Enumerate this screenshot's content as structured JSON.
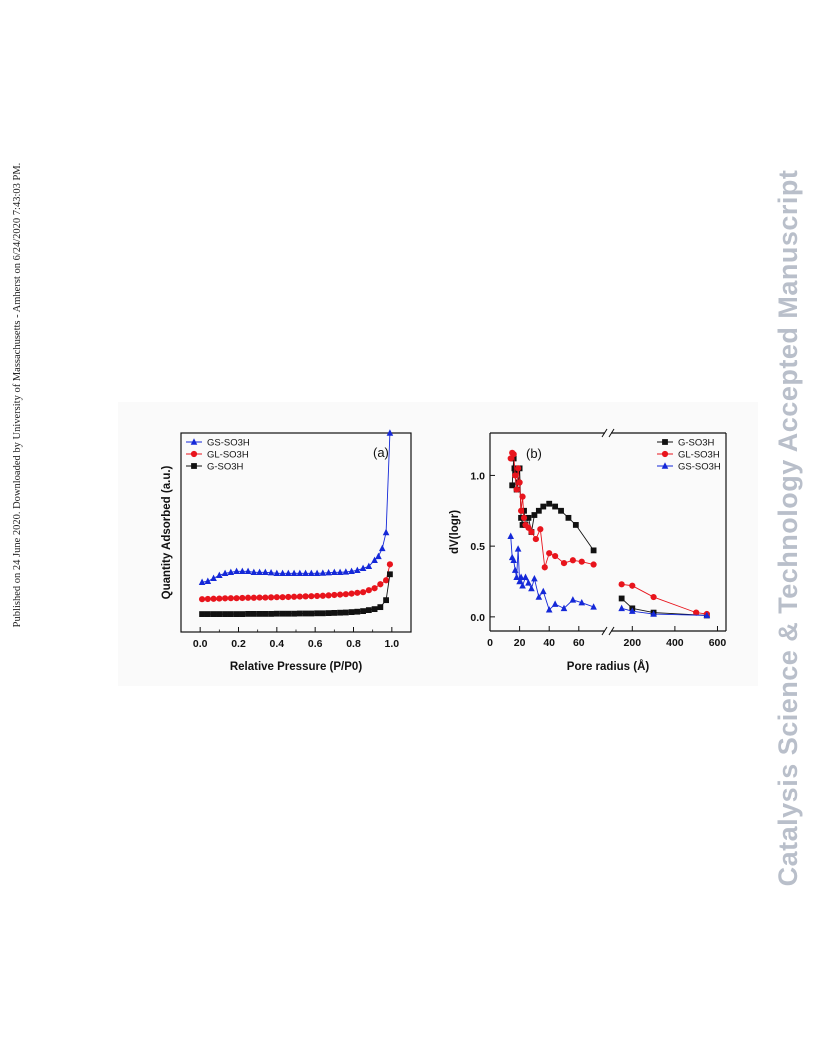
{
  "side_note": "Published on 24 June 2020. Downloaded by University of Massachusetts - Amherst on 6/24/2020 7:43:03 PM.",
  "watermark": "Catalysis Science & Technology Accepted Manuscript",
  "colors": {
    "black": "#111111",
    "red": "#e8141c",
    "blue": "#1428d8"
  },
  "chart_data": [
    {
      "type": "line",
      "panel_label": "(a)",
      "xlabel": "Relative Pressure (P/P0)",
      "ylabel": "Quantity Adsorbed (a.u.)",
      "xlim": [
        -0.1,
        1.1
      ],
      "ylim": [
        0,
        1
      ],
      "x_ticks": [
        "0.0",
        "0.2",
        "0.4",
        "0.6",
        "0.8",
        "1.0"
      ],
      "y_ticks_labeled": false,
      "legend_position": "top-left",
      "series": [
        {
          "name": "GS-SO3H",
          "color": "#1428d8",
          "marker": "triangle",
          "x": [
            0.01,
            0.04,
            0.07,
            0.1,
            0.13,
            0.16,
            0.19,
            0.22,
            0.25,
            0.28,
            0.31,
            0.34,
            0.37,
            0.4,
            0.43,
            0.46,
            0.49,
            0.52,
            0.55,
            0.58,
            0.61,
            0.64,
            0.67,
            0.7,
            0.73,
            0.76,
            0.79,
            0.82,
            0.85,
            0.88,
            0.91,
            0.93,
            0.95,
            0.97,
            0.99
          ],
          "y": [
            0.25,
            0.255,
            0.27,
            0.285,
            0.295,
            0.3,
            0.305,
            0.305,
            0.305,
            0.3,
            0.3,
            0.3,
            0.298,
            0.295,
            0.295,
            0.295,
            0.295,
            0.295,
            0.295,
            0.295,
            0.295,
            0.296,
            0.298,
            0.3,
            0.3,
            0.302,
            0.305,
            0.31,
            0.32,
            0.33,
            0.36,
            0.38,
            0.42,
            0.5,
            1.0
          ]
        },
        {
          "name": "GL-SO3H",
          "color": "#e8141c",
          "marker": "circle",
          "x": [
            0.01,
            0.04,
            0.07,
            0.1,
            0.13,
            0.16,
            0.19,
            0.22,
            0.25,
            0.28,
            0.31,
            0.34,
            0.37,
            0.4,
            0.43,
            0.46,
            0.49,
            0.52,
            0.55,
            0.58,
            0.61,
            0.64,
            0.67,
            0.7,
            0.73,
            0.76,
            0.79,
            0.82,
            0.85,
            0.88,
            0.91,
            0.94,
            0.97,
            0.99
          ],
          "y": [
            0.165,
            0.166,
            0.167,
            0.168,
            0.169,
            0.17,
            0.17,
            0.171,
            0.172,
            0.172,
            0.173,
            0.173,
            0.174,
            0.175,
            0.175,
            0.176,
            0.177,
            0.178,
            0.179,
            0.18,
            0.181,
            0.182,
            0.184,
            0.186,
            0.188,
            0.19,
            0.193,
            0.197,
            0.2,
            0.21,
            0.22,
            0.24,
            0.26,
            0.34
          ]
        },
        {
          "name": "G-SO3H",
          "color": "#111111",
          "marker": "square",
          "x": [
            0.01,
            0.04,
            0.07,
            0.1,
            0.13,
            0.16,
            0.19,
            0.22,
            0.25,
            0.28,
            0.31,
            0.34,
            0.37,
            0.4,
            0.43,
            0.46,
            0.49,
            0.52,
            0.55,
            0.58,
            0.61,
            0.64,
            0.67,
            0.7,
            0.73,
            0.76,
            0.79,
            0.82,
            0.85,
            0.88,
            0.91,
            0.94,
            0.97,
            0.99
          ],
          "y": [
            0.09,
            0.09,
            0.09,
            0.09,
            0.09,
            0.09,
            0.09,
            0.09,
            0.091,
            0.091,
            0.091,
            0.091,
            0.091,
            0.092,
            0.092,
            0.092,
            0.092,
            0.093,
            0.093,
            0.093,
            0.094,
            0.094,
            0.095,
            0.096,
            0.097,
            0.098,
            0.1,
            0.102,
            0.105,
            0.11,
            0.115,
            0.125,
            0.16,
            0.29
          ]
        }
      ]
    },
    {
      "type": "line",
      "panel_label": "(b)",
      "xlabel": "Pore radius (Å)",
      "ylabel": "dV(logr)",
      "x_axis_break": true,
      "x_ticks": [
        "0",
        "20",
        "40",
        "60",
        "200",
        "400",
        "600"
      ],
      "y_ticks": [
        "0.0",
        "0.5",
        "1.0"
      ],
      "ylim": [
        -0.1,
        1.3
      ],
      "legend_position": "top-right",
      "series": [
        {
          "name": "G-SO3H",
          "color": "#111111",
          "marker": "square",
          "x": [
            15,
            16,
            16.5,
            17,
            18,
            19,
            20,
            21,
            22,
            23,
            24,
            26,
            28,
            30,
            33,
            36,
            40,
            44,
            48,
            53,
            58,
            70,
            150,
            200,
            300,
            550
          ],
          "y": [
            0.93,
            1.12,
            1.05,
            1.02,
            0.9,
            0.95,
            1.05,
            0.7,
            0.65,
            0.75,
            0.65,
            0.7,
            0.6,
            0.72,
            0.75,
            0.78,
            0.8,
            0.78,
            0.75,
            0.7,
            0.65,
            0.47,
            0.13,
            0.06,
            0.03,
            0.01
          ]
        },
        {
          "name": "GL-SO3H",
          "color": "#e8141c",
          "marker": "circle",
          "x": [
            14,
            15,
            16,
            17,
            18,
            19,
            20,
            21,
            22,
            23,
            24,
            26,
            28,
            31,
            34,
            37,
            40,
            44,
            50,
            56,
            62,
            70,
            150,
            200,
            300,
            500,
            550
          ],
          "y": [
            1.12,
            1.16,
            1.15,
            1.0,
            0.9,
            1.05,
            0.95,
            0.75,
            0.85,
            0.7,
            0.65,
            0.63,
            0.6,
            0.55,
            0.62,
            0.35,
            0.45,
            0.43,
            0.38,
            0.4,
            0.39,
            0.37,
            0.23,
            0.22,
            0.14,
            0.03,
            0.02
          ]
        },
        {
          "name": "GS-SO3H",
          "color": "#1428d8",
          "marker": "triangle",
          "x": [
            14,
            15,
            16,
            17,
            18,
            19,
            20,
            21,
            22,
            24,
            26,
            28,
            30,
            33,
            36,
            40,
            44,
            50,
            56,
            62,
            70,
            150,
            200,
            300,
            550
          ],
          "y": [
            0.57,
            0.42,
            0.4,
            0.33,
            0.28,
            0.48,
            0.25,
            0.28,
            0.22,
            0.28,
            0.24,
            0.2,
            0.27,
            0.14,
            0.18,
            0.05,
            0.09,
            0.06,
            0.12,
            0.1,
            0.07,
            0.06,
            0.04,
            0.02,
            0.01
          ]
        }
      ]
    }
  ]
}
